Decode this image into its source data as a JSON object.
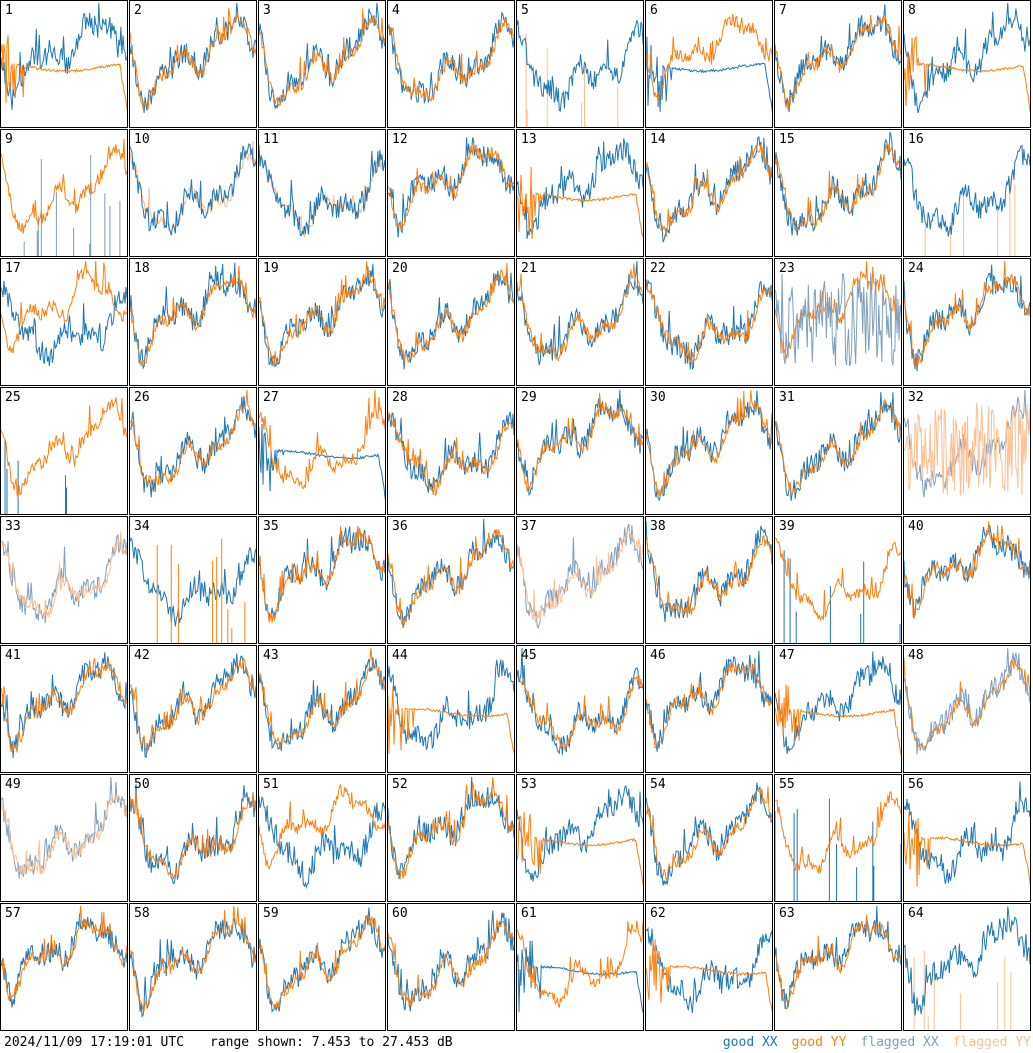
{
  "footer": {
    "timestamp": "2024/11/09 17:19:01 UTC",
    "range_label": "range shown: 7.453 to 27.453 dB"
  },
  "legend": [
    {
      "label": "good XX",
      "color": "#1f77b4"
    },
    {
      "label": "good YY",
      "color": "#ff7f0e"
    },
    {
      "label": "flagged XX",
      "color": "#7f9fbf"
    },
    {
      "label": "flagged YY",
      "color": "#ffbf8f"
    }
  ],
  "chart_data": {
    "type": "line",
    "grid": {
      "rows": 8,
      "cols": 8
    },
    "y_range_db": [
      7.453,
      27.453
    ],
    "colors": {
      "good_xx": "#1f77b4",
      "good_yy": "#ff7f0e",
      "flagged_xx": "#7f9fbf",
      "flagged_yy": "#ffbf8f"
    },
    "panels": [
      {
        "id": "1",
        "xx": "good",
        "yy": "good",
        "front": "yy",
        "yy_style": "plateau"
      },
      {
        "id": "2",
        "xx": "good",
        "yy": "good",
        "front": "yy",
        "yy_style": "normal"
      },
      {
        "id": "3",
        "xx": "good",
        "yy": "good",
        "front": "yy",
        "yy_style": "normal"
      },
      {
        "id": "4",
        "xx": "good",
        "yy": "good",
        "front": "yy",
        "yy_style": "normal"
      },
      {
        "id": "5",
        "xx": "good",
        "yy": "flagged",
        "front": "xx",
        "xx_style": "normal",
        "yy_style": "spikes"
      },
      {
        "id": "6",
        "xx": "good",
        "yy": "good",
        "front": "yy",
        "xx_style": "plateau",
        "yy_style": "normal"
      },
      {
        "id": "7",
        "xx": "good",
        "yy": "good",
        "front": "yy",
        "yy_style": "normal"
      },
      {
        "id": "8",
        "xx": "good",
        "yy": "good",
        "front": "yy",
        "yy_style": "plateau"
      },
      {
        "id": "9",
        "xx": "flagged",
        "yy": "good",
        "front": "yy",
        "xx_style": "spikes",
        "yy_style": "normal"
      },
      {
        "id": "10",
        "xx": "good",
        "yy": "flagged",
        "front": "xx",
        "yy_style": "normal"
      },
      {
        "id": "11",
        "xx": "good",
        "yy": "flagged",
        "front": "xx",
        "yy_style": "normal"
      },
      {
        "id": "12",
        "xx": "good",
        "yy": "good",
        "front": "yy",
        "yy_style": "normal"
      },
      {
        "id": "13",
        "xx": "good",
        "yy": "good",
        "front": "yy",
        "yy_style": "plateau"
      },
      {
        "id": "14",
        "xx": "good",
        "yy": "good",
        "front": "yy",
        "yy_style": "normal"
      },
      {
        "id": "15",
        "xx": "good",
        "yy": "good",
        "front": "yy",
        "yy_style": "normal"
      },
      {
        "id": "16",
        "xx": "good",
        "yy": "flagged",
        "front": "xx",
        "yy_style": "spikes"
      },
      {
        "id": "17",
        "xx": "good",
        "yy": "good",
        "front": "yy",
        "yy_style": "normal"
      },
      {
        "id": "18",
        "xx": "good",
        "yy": "good",
        "front": "yy",
        "yy_style": "normal"
      },
      {
        "id": "19",
        "xx": "good",
        "yy": "good",
        "front": "yy",
        "yy_style": "normal"
      },
      {
        "id": "20",
        "xx": "good",
        "yy": "good",
        "front": "yy",
        "yy_style": "normal"
      },
      {
        "id": "21",
        "xx": "good",
        "yy": "good",
        "front": "yy",
        "yy_style": "normal"
      },
      {
        "id": "22",
        "xx": "good",
        "yy": "good",
        "front": "yy",
        "yy_style": "normal"
      },
      {
        "id": "23",
        "xx": "flagged",
        "yy": "good",
        "front": "xx",
        "xx_style": "noisy",
        "yy_style": "normal"
      },
      {
        "id": "24",
        "xx": "good",
        "yy": "good",
        "front": "yy",
        "yy_style": "normal"
      },
      {
        "id": "25",
        "xx": "good",
        "yy": "good",
        "front": "yy",
        "xx_style": "spikes",
        "yy_style": "normal"
      },
      {
        "id": "26",
        "xx": "good",
        "yy": "good",
        "front": "yy",
        "yy_style": "normal"
      },
      {
        "id": "27",
        "xx": "good",
        "yy": "good",
        "front": "yy",
        "xx_style": "plateau",
        "yy_style": "normal"
      },
      {
        "id": "28",
        "xx": "good",
        "yy": "good",
        "front": "yy",
        "yy_style": "normal"
      },
      {
        "id": "29",
        "xx": "good",
        "yy": "good",
        "front": "yy",
        "yy_style": "normal"
      },
      {
        "id": "30",
        "xx": "good",
        "yy": "good",
        "front": "yy",
        "yy_style": "normal"
      },
      {
        "id": "31",
        "xx": "good",
        "yy": "good",
        "front": "yy",
        "yy_style": "normal"
      },
      {
        "id": "32",
        "xx": "flagged",
        "yy": "flagged",
        "front": "yy",
        "xx_style": "normal",
        "yy_style": "noisy"
      },
      {
        "id": "33",
        "xx": "flagged",
        "yy": "flagged",
        "front": "yy",
        "yy_style": "normal"
      },
      {
        "id": "34",
        "xx": "good",
        "yy": "good",
        "front": "yy",
        "xx_style": "normal",
        "yy_style": "spikes"
      },
      {
        "id": "35",
        "xx": "good",
        "yy": "good",
        "front": "yy",
        "yy_style": "normal"
      },
      {
        "id": "36",
        "xx": "good",
        "yy": "good",
        "front": "yy",
        "yy_style": "normal"
      },
      {
        "id": "37",
        "xx": "flagged",
        "yy": "flagged",
        "front": "yy",
        "yy_style": "normal"
      },
      {
        "id": "38",
        "xx": "good",
        "yy": "good",
        "front": "yy",
        "yy_style": "normal"
      },
      {
        "id": "39",
        "xx": "good",
        "yy": "good",
        "front": "yy",
        "xx_style": "spikes",
        "yy_style": "normal"
      },
      {
        "id": "40",
        "xx": "good",
        "yy": "good",
        "front": "yy",
        "yy_style": "normal"
      },
      {
        "id": "41",
        "xx": "good",
        "yy": "good",
        "front": "yy",
        "yy_style": "normal"
      },
      {
        "id": "42",
        "xx": "good",
        "yy": "good",
        "front": "yy",
        "yy_style": "normal"
      },
      {
        "id": "43",
        "xx": "good",
        "yy": "good",
        "front": "yy",
        "yy_style": "normal"
      },
      {
        "id": "44",
        "xx": "good",
        "yy": "good",
        "front": "yy",
        "yy_style": "plateau"
      },
      {
        "id": "45",
        "xx": "good",
        "yy": "good",
        "front": "yy",
        "yy_style": "normal"
      },
      {
        "id": "46",
        "xx": "good",
        "yy": "good",
        "front": "yy",
        "yy_style": "normal"
      },
      {
        "id": "47",
        "xx": "good",
        "yy": "good",
        "front": "yy",
        "yy_style": "plateau"
      },
      {
        "id": "48",
        "xx": "flagged",
        "yy": "good",
        "front": "xx",
        "yy_style": "normal"
      },
      {
        "id": "49",
        "xx": "flagged",
        "yy": "flagged",
        "front": "yy",
        "yy_style": "normal"
      },
      {
        "id": "50",
        "xx": "good",
        "yy": "good",
        "front": "yy",
        "yy_style": "normal"
      },
      {
        "id": "51",
        "xx": "good",
        "yy": "good",
        "front": "yy",
        "yy_style": "normal"
      },
      {
        "id": "52",
        "xx": "good",
        "yy": "good",
        "front": "yy",
        "yy_style": "normal"
      },
      {
        "id": "53",
        "xx": "good",
        "yy": "good",
        "front": "yy",
        "yy_style": "plateau"
      },
      {
        "id": "54",
        "xx": "good",
        "yy": "good",
        "front": "yy",
        "yy_style": "normal"
      },
      {
        "id": "55",
        "xx": "good",
        "yy": "good",
        "front": "yy",
        "xx_style": "spikes",
        "yy_style": "normal"
      },
      {
        "id": "56",
        "xx": "good",
        "yy": "good",
        "front": "yy",
        "yy_style": "plateau"
      },
      {
        "id": "57",
        "xx": "good",
        "yy": "good",
        "front": "yy",
        "yy_style": "normal"
      },
      {
        "id": "58",
        "xx": "good",
        "yy": "good",
        "front": "yy",
        "yy_style": "normal"
      },
      {
        "id": "59",
        "xx": "good",
        "yy": "good",
        "front": "yy",
        "yy_style": "normal"
      },
      {
        "id": "60",
        "xx": "good",
        "yy": "good",
        "front": "yy",
        "yy_style": "normal"
      },
      {
        "id": "61",
        "xx": "good",
        "yy": "good",
        "front": "yy",
        "xx_style": "plateau",
        "yy_style": "normal"
      },
      {
        "id": "62",
        "xx": "good",
        "yy": "good",
        "front": "yy",
        "yy_style": "plateau"
      },
      {
        "id": "63",
        "xx": "good",
        "yy": "good",
        "front": "yy",
        "yy_style": "normal"
      },
      {
        "id": "64",
        "xx": "good",
        "yy": "flagged",
        "front": "xx",
        "yy_style": "spikes"
      }
    ]
  }
}
